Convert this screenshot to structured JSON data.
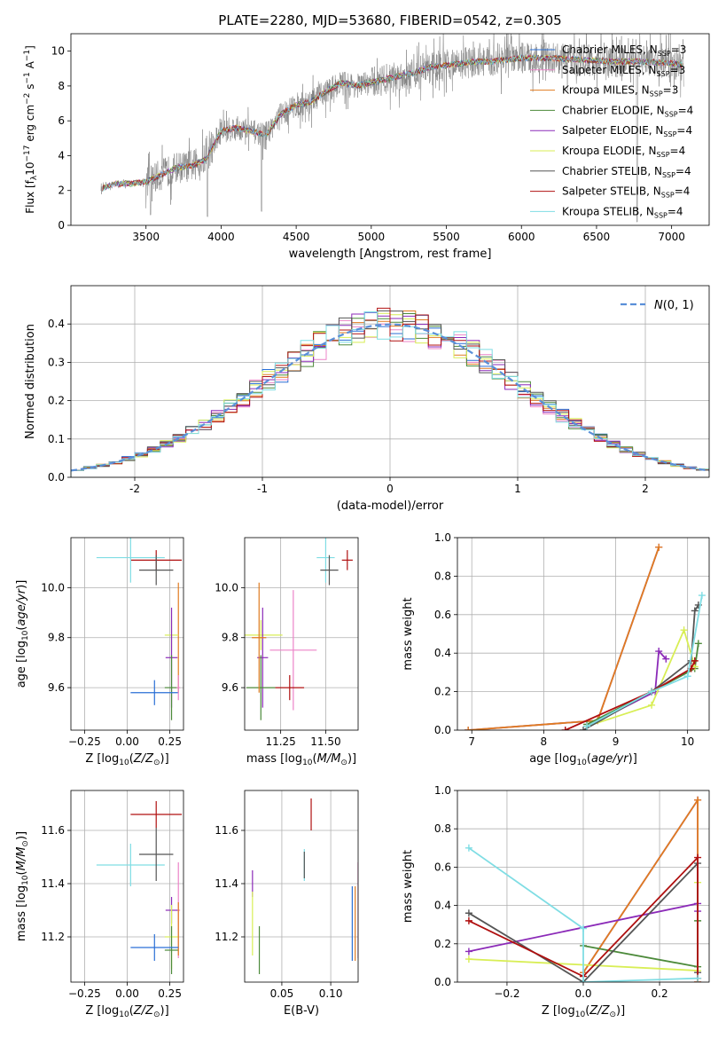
{
  "figure": {
    "title": "PLATE=2280, MJD=53680, FIBERID=0542, z=0.305"
  },
  "colors": {
    "Chabrier MILES": "#2a6fd6",
    "Salpeter MILES": "#ec84c8",
    "Kroupa MILES": "#e07b20",
    "Chabrier ELODIE": "#4c8a3a",
    "Salpeter ELODIE": "#8b2ab8",
    "Kroupa ELODIE": "#d8ee55",
    "Chabrier STELIB": "#555555",
    "Salpeter STELIB": "#b01010",
    "Kroupa STELIB": "#7fdde4",
    "normal_curve": "#5a8fd8",
    "data_spectrum": "#808080"
  },
  "chart_data": [
    {
      "id": "spectrum",
      "type": "line",
      "title": "PLATE=2280, MJD=53680, FIBERID=0542, z=0.305",
      "xlabel": "wavelength [Angstrom, rest frame]",
      "ylabel": "Flux [f_λ10^-17 erg cm^-2 s^-1 A^-1]",
      "xlim": [
        3000,
        7250
      ],
      "ylim": [
        0,
        11
      ],
      "xticks": [
        3500,
        4000,
        4500,
        5000,
        5500,
        6000,
        6500,
        7000
      ],
      "yticks": [
        0,
        2,
        4,
        6,
        8,
        10
      ],
      "grid": false,
      "legend_position": "top-right",
      "legend": [
        "Chabrier MILES, N_SSP=3",
        "Salpeter MILES, N_SSP=3",
        "Kroupa MILES, N_SSP=3",
        "Chabrier ELODIE, N_SSP=4",
        "Salpeter ELODIE, N_SSP=4",
        "Kroupa ELODIE, N_SSP=4",
        "Chabrier STELIB, N_SSP=4",
        "Salpeter STELIB, N_SSP=4",
        "Kroupa STELIB, N_SSP=4"
      ],
      "continuum": {
        "x": [
          3200,
          3300,
          3400,
          3500,
          3600,
          3700,
          3800,
          3900,
          4000,
          4100,
          4200,
          4300,
          4400,
          4500,
          4600,
          4700,
          4800,
          4900,
          5000,
          5100,
          5200,
          5300,
          5400,
          5500,
          5600,
          5700,
          5800,
          5900,
          6000,
          6200,
          6400,
          6600,
          6800,
          7000,
          7080
        ],
        "y": [
          2.1,
          2.4,
          2.4,
          2.5,
          2.9,
          3.3,
          3.4,
          3.8,
          5.4,
          5.6,
          5.4,
          5.2,
          6.4,
          6.9,
          7.1,
          7.7,
          8.2,
          8.0,
          8.2,
          8.4,
          8.6,
          8.8,
          9.1,
          9.2,
          9.3,
          9.4,
          9.4,
          9.5,
          9.6,
          9.6,
          9.5,
          9.4,
          9.4,
          9.3,
          9.2
        ]
      },
      "absorption_features": [
        {
          "x": 3530,
          "y": 0.6
        },
        {
          "x": 3910,
          "y": 0.5
        },
        {
          "x": 4270,
          "y": 0.8
        },
        {
          "x": 6770,
          "y": 0.2
        }
      ]
    },
    {
      "id": "residuals",
      "type": "step",
      "xlabel": "(data-model)/error",
      "ylabel": "Normed distribution",
      "xlim": [
        -2.5,
        2.5
      ],
      "ylim": [
        0,
        0.5
      ],
      "xticks": [
        -2,
        -1,
        0,
        1,
        2
      ],
      "ytick_labels": [
        "0.0",
        "0.1",
        "0.2",
        "0.3",
        "0.4"
      ],
      "yticks": [
        0,
        0.1,
        0.2,
        0.3,
        0.4
      ],
      "grid": true,
      "legend_position": "top-right",
      "legend": [
        "N(0, 1)"
      ],
      "bins": [
        -2.5,
        2.5,
        50
      ]
    },
    {
      "id": "age_vs_Z",
      "type": "errorbar",
      "xlabel": "Z [log10(Z/Z⊙)]",
      "ylabel": "age [log10(age/yr)]",
      "xlim": [
        -0.33,
        0.33
      ],
      "ylim": [
        9.43,
        10.2
      ],
      "xticks": [
        -0.25,
        0.0,
        0.25
      ],
      "xtick_labels": [
        "−0.25",
        "0.00",
        "0.25"
      ],
      "yticks": [
        9.6,
        9.8,
        10.0
      ],
      "ytick_labels": [
        "9.6",
        "9.8",
        "10.0"
      ],
      "grid": true,
      "points": [
        {
          "model": "Salpeter STELIB",
          "x": 0.17,
          "xerr": 0.15,
          "y": 10.11,
          "yerr": 0.04
        },
        {
          "model": "Kroupa STELIB",
          "x": 0.02,
          "xerr": 0.2,
          "y": 10.12,
          "yerr": 0.1
        },
        {
          "model": "Chabrier STELIB",
          "x": 0.17,
          "xerr": 0.1,
          "y": 10.07,
          "yerr": 0.06
        },
        {
          "model": "Kroupa MILES",
          "x": 0.3,
          "xerr": 0.001,
          "y": 9.8,
          "yerr": 0.22
        },
        {
          "model": "Kroupa ELODIE",
          "x": 0.26,
          "xerr": 0.04,
          "y": 9.81,
          "yerr": 0.06
        },
        {
          "model": "Salpeter ELODIE",
          "x": 0.26,
          "xerr": 0.035,
          "y": 9.72,
          "yerr": 0.2
        },
        {
          "model": "Chabrier ELODIE",
          "x": 0.26,
          "xerr": 0.04,
          "y": 9.6,
          "yerr": 0.13
        },
        {
          "model": "Chabrier MILES",
          "x": 0.16,
          "xerr": 0.14,
          "y": 9.58,
          "yerr": 0.05
        },
        {
          "model": "Salpeter MILES",
          "x": 0.3,
          "xerr": 0.01,
          "y": 9.6,
          "yerr": 0.05
        }
      ]
    },
    {
      "id": "age_vs_mass",
      "type": "errorbar",
      "xlabel": "mass [log10(M/M⊙)]",
      "ylabel": "",
      "xlim": [
        11.05,
        11.68
      ],
      "ylim": [
        9.43,
        10.2
      ],
      "xticks": [
        11.25,
        11.5
      ],
      "xtick_labels": [
        "11.25",
        "11.50"
      ],
      "yticks": [
        9.6,
        9.8,
        10.0
      ],
      "ytick_labels": [
        "9.6",
        "9.8",
        "10.0"
      ],
      "grid": true,
      "points": [
        {
          "model": "Salpeter STELIB",
          "x": 11.62,
          "xerr": 0.03,
          "y": 10.11,
          "yerr": 0.04
        },
        {
          "model": "Kroupa STELIB",
          "x": 11.5,
          "xerr": 0.05,
          "y": 10.12,
          "yerr": 0.1
        },
        {
          "model": "Chabrier STELIB",
          "x": 11.52,
          "xerr": 0.05,
          "y": 10.07,
          "yerr": 0.06
        },
        {
          "model": "Kroupa ELODIE",
          "x": 11.14,
          "xerr": 0.12,
          "y": 9.81,
          "yerr": 0.06
        },
        {
          "model": "Salpeter ELODIE",
          "x": 11.15,
          "xerr": 0.03,
          "y": 9.72,
          "yerr": 0.2
        },
        {
          "model": "Chabrier ELODIE",
          "x": 11.14,
          "xerr": 0.08,
          "y": 9.6,
          "yerr": 0.13
        },
        {
          "model": "Salpeter MILES",
          "x": 11.32,
          "xerr": 0.13,
          "y": 9.75,
          "yerr": 0.24
        },
        {
          "model": "Kroupa MILES",
          "x": 11.13,
          "xerr": 0.04,
          "y": 9.8,
          "yerr": 0.22
        },
        {
          "model": "Salpeter STELIB",
          "x": 11.3,
          "xerr": 0.08,
          "y": 9.6,
          "yerr": 0.05
        }
      ]
    },
    {
      "id": "weight_vs_age",
      "type": "line",
      "xlabel": "age [log10(age/yr)]",
      "ylabel": "mass weight",
      "xlim": [
        6.8,
        10.3
      ],
      "ylim": [
        0,
        1.0
      ],
      "xticks": [
        7,
        8,
        9,
        10
      ],
      "yticks": [
        0,
        0.2,
        0.4,
        0.6,
        0.8,
        1.0
      ],
      "ytick_labels": [
        "0.0",
        "0.2",
        "0.4",
        "0.6",
        "0.8",
        "1.0"
      ],
      "grid": true,
      "series": [
        {
          "model": "Chabrier MILES",
          "x": [
            6.95,
            8.75,
            9.6
          ],
          "y": [
            0.0,
            0.05,
            0.95
          ]
        },
        {
          "model": "Salpeter MILES",
          "x": [
            6.95,
            8.75,
            9.6
          ],
          "y": [
            0.0,
            0.05,
            0.95
          ]
        },
        {
          "model": "Kroupa MILES",
          "x": [
            6.95,
            8.75,
            9.6
          ],
          "y": [
            0.0,
            0.05,
            0.95
          ]
        },
        {
          "model": "Chabrier ELODIE",
          "x": [
            8.6,
            9.5,
            10.1,
            10.15
          ],
          "y": [
            0.03,
            0.2,
            0.32,
            0.45
          ]
        },
        {
          "model": "Salpeter ELODIE",
          "x": [
            8.6,
            9.55,
            9.6,
            9.7
          ],
          "y": [
            0.02,
            0.2,
            0.41,
            0.37
          ]
        },
        {
          "model": "Kroupa ELODIE",
          "x": [
            8.6,
            9.5,
            9.95,
            10.1
          ],
          "y": [
            0.02,
            0.13,
            0.52,
            0.33
          ]
        },
        {
          "model": "Chabrier STELIB",
          "x": [
            8.55,
            9.5,
            10.05,
            10.1,
            10.15
          ],
          "y": [
            0.0,
            0.2,
            0.36,
            0.62,
            0.65
          ]
        },
        {
          "model": "Salpeter STELIB",
          "x": [
            8.3,
            9.5,
            10.05,
            10.1
          ],
          "y": [
            0.0,
            0.2,
            0.32,
            0.36
          ]
        },
        {
          "model": "Kroupa STELIB",
          "x": [
            8.6,
            9.5,
            10.0,
            10.2
          ],
          "y": [
            0.02,
            0.2,
            0.28,
            0.7
          ]
        }
      ]
    },
    {
      "id": "mass_vs_Z",
      "type": "errorbar",
      "xlabel": "Z [log10(Z/Z⊙)]",
      "ylabel": "mass [log10(M/M⊙)]",
      "xlim": [
        -0.33,
        0.33
      ],
      "ylim": [
        11.03,
        11.75
      ],
      "xticks": [
        -0.25,
        0.0,
        0.25
      ],
      "xtick_labels": [
        "−0.25",
        "0.00",
        "0.25"
      ],
      "yticks": [
        11.2,
        11.4,
        11.6
      ],
      "ytick_labels": [
        "11.2",
        "11.4",
        "11.6"
      ],
      "grid": true,
      "points": [
        {
          "model": "Salpeter STELIB",
          "x": 0.17,
          "xerr": 0.15,
          "y": 11.66,
          "yerr": 0.05
        },
        {
          "model": "Kroupa STELIB",
          "x": 0.02,
          "xerr": 0.2,
          "y": 11.47,
          "yerr": 0.08
        },
        {
          "model": "Chabrier STELIB",
          "x": 0.17,
          "xerr": 0.1,
          "y": 11.51,
          "yerr": 0.1
        },
        {
          "model": "Salpeter MILES",
          "x": 0.3,
          "xerr": 0.01,
          "y": 11.3,
          "yerr": 0.18
        },
        {
          "model": "Salpeter ELODIE",
          "x": 0.26,
          "xerr": 0.035,
          "y": 11.3,
          "yerr": 0.05
        },
        {
          "model": "Kroupa ELODIE",
          "x": 0.26,
          "xerr": 0.04,
          "y": 11.2,
          "yerr": 0.12
        },
        {
          "model": "Chabrier ELODIE",
          "x": 0.26,
          "xerr": 0.04,
          "y": 11.15,
          "yerr": 0.09
        },
        {
          "model": "Kroupa MILES",
          "x": 0.3,
          "xerr": 0.001,
          "y": 11.23,
          "yerr": 0.1
        },
        {
          "model": "Chabrier MILES",
          "x": 0.16,
          "xerr": 0.14,
          "y": 11.16,
          "yerr": 0.05
        }
      ]
    },
    {
      "id": "mass_vs_ebv",
      "type": "errorbar",
      "xlabel": "E(B-V)",
      "ylabel": "",
      "xlim": [
        0.012,
        0.128
      ],
      "ylim": [
        11.03,
        11.75
      ],
      "xticks": [
        0.05,
        0.1
      ],
      "xtick_labels": [
        "0.05",
        "0.10"
      ],
      "yticks": [
        11.2,
        11.4,
        11.6
      ],
      "ytick_labels": [
        "11.2",
        "11.4",
        "11.6"
      ],
      "grid": true,
      "points": [
        {
          "model": "Salpeter STELIB",
          "x": 0.08,
          "xerr": 0.0,
          "y": 11.66,
          "yerr": 0.06
        },
        {
          "model": "Kroupa STELIB",
          "x": 0.073,
          "xerr": 0.0,
          "y": 11.47,
          "yerr": 0.06
        },
        {
          "model": "Chabrier STELIB",
          "x": 0.073,
          "xerr": 0.0,
          "y": 11.47,
          "yerr": 0.05
        },
        {
          "model": "Salpeter ELODIE",
          "x": 0.02,
          "xerr": 0.0,
          "y": 11.4,
          "yerr": 0.05
        },
        {
          "model": "Kroupa ELODIE",
          "x": 0.02,
          "xerr": 0.0,
          "y": 11.25,
          "yerr": 0.12
        },
        {
          "model": "Chabrier ELODIE",
          "x": 0.027,
          "xerr": 0.0,
          "y": 11.15,
          "yerr": 0.09
        },
        {
          "model": "Salpeter MILES",
          "x": 0.128,
          "xerr": 0.0,
          "y": 11.3,
          "yerr": 0.18
        },
        {
          "model": "Kroupa MILES",
          "x": 0.125,
          "xerr": 0.0,
          "y": 11.25,
          "yerr": 0.14
        },
        {
          "model": "Chabrier MILES",
          "x": 0.122,
          "xerr": 0.0,
          "y": 11.25,
          "yerr": 0.14
        }
      ]
    },
    {
      "id": "weight_vs_Z",
      "type": "line",
      "xlabel": "Z [log10(Z/Z⊙)]",
      "ylabel": "mass weight",
      "xlim": [
        -0.33,
        0.33
      ],
      "ylim": [
        0,
        1.0
      ],
      "xticks": [
        -0.2,
        0.0,
        0.2
      ],
      "xtick_labels": [
        "−0.2",
        "0.0",
        "0.2"
      ],
      "yticks": [
        0,
        0.2,
        0.4,
        0.6,
        0.8,
        1.0
      ],
      "ytick_labels": [
        "0.0",
        "0.2",
        "0.4",
        "0.6",
        "0.8",
        "1.0"
      ],
      "grid": true,
      "series": [
        {
          "model": "Chabrier MILES",
          "x": [
            0.0,
            0.3,
            0.3
          ],
          "y": [
            0.05,
            0.95,
            0.0
          ]
        },
        {
          "model": "Salpeter MILES",
          "x": [
            0.0,
            0.3,
            0.3
          ],
          "y": [
            0.05,
            0.95,
            0.0
          ]
        },
        {
          "model": "Kroupa MILES",
          "x": [
            0.0,
            0.3,
            0.3
          ],
          "y": [
            0.05,
            0.95,
            0.0
          ]
        },
        {
          "model": "Chabrier ELODIE",
          "x": [
            0.0,
            0.3,
            0.3
          ],
          "y": [
            0.19,
            0.08,
            0.32
          ]
        },
        {
          "model": "Salpeter ELODIE",
          "x": [
            -0.3,
            0.3,
            0.3
          ],
          "y": [
            0.16,
            0.41,
            0.37
          ]
        },
        {
          "model": "Kroupa ELODIE",
          "x": [
            -0.3,
            0.3,
            0.3
          ],
          "y": [
            0.12,
            0.06,
            0.52
          ]
        },
        {
          "model": "Chabrier STELIB",
          "x": [
            -0.3,
            0.0,
            0.3,
            0.3
          ],
          "y": [
            0.36,
            0.0,
            0.62,
            0.05
          ]
        },
        {
          "model": "Salpeter STELIB",
          "x": [
            -0.3,
            0.0,
            0.3,
            0.3
          ],
          "y": [
            0.32,
            0.03,
            0.65,
            0.02
          ]
        },
        {
          "model": "Kroupa STELIB",
          "x": [
            -0.3,
            0.0,
            0.0,
            0.3
          ],
          "y": [
            0.7,
            0.28,
            0.0,
            0.02
          ]
        }
      ]
    }
  ]
}
